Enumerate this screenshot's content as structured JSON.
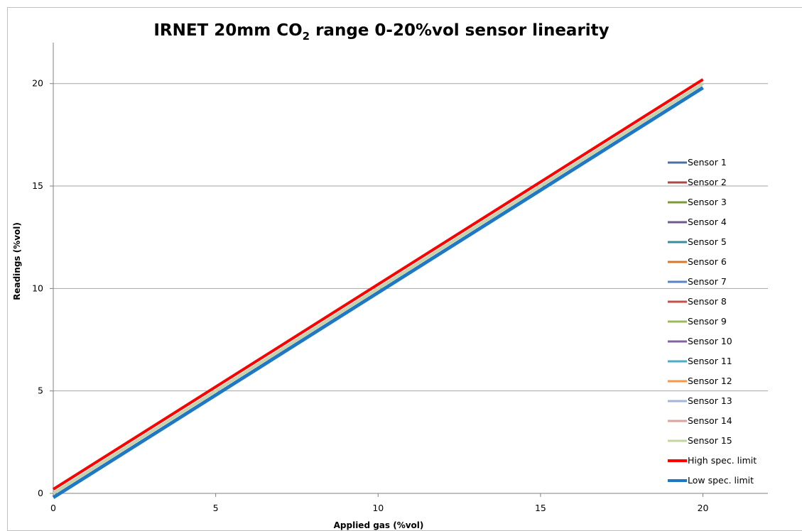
{
  "chart_data": {
    "type": "line",
    "title_main": "IRNET 20mm CO",
    "title_sub": "2",
    "title_rest": " range  0-20%vol sensor linearity",
    "xlabel": "Applied gas (%vol)",
    "ylabel": "Readings (%vol)",
    "xlim": [
      0,
      22
    ],
    "ylim": [
      0,
      22
    ],
    "x_ticks": [
      0,
      5,
      10,
      15,
      20
    ],
    "y_ticks": [
      0,
      5,
      10,
      15,
      20
    ],
    "grid": "horizontal",
    "legend_position": "right",
    "x": [
      0,
      20
    ],
    "series": [
      {
        "name": "Sensor 1",
        "color": "#4a6fa5",
        "values": [
          0.0,
          20.0
        ]
      },
      {
        "name": "Sensor 2",
        "color": "#a84a4a",
        "values": [
          0.0,
          20.0
        ]
      },
      {
        "name": "Sensor 3",
        "color": "#7a9a3a",
        "values": [
          0.0,
          20.0
        ]
      },
      {
        "name": "Sensor 4",
        "color": "#6f5a8f",
        "values": [
          0.0,
          20.0
        ]
      },
      {
        "name": "Sensor 5",
        "color": "#3a8aa0",
        "values": [
          0.0,
          20.0
        ]
      },
      {
        "name": "Sensor 6",
        "color": "#d9772a",
        "values": [
          0.0,
          20.0
        ]
      },
      {
        "name": "Sensor 7",
        "color": "#5a82c4",
        "values": [
          0.0,
          20.0
        ]
      },
      {
        "name": "Sensor 8",
        "color": "#c4504d",
        "values": [
          0.0,
          20.0
        ]
      },
      {
        "name": "Sensor 9",
        "color": "#9bbb59",
        "values": [
          0.0,
          20.0
        ]
      },
      {
        "name": "Sensor 10",
        "color": "#8064a2",
        "values": [
          0.0,
          20.0
        ]
      },
      {
        "name": "Sensor 11",
        "color": "#4bacc6",
        "values": [
          0.0,
          20.0
        ]
      },
      {
        "name": "Sensor 12",
        "color": "#f79646",
        "values": [
          0.0,
          20.0
        ]
      },
      {
        "name": "Sensor 13",
        "color": "#a3b6d6",
        "values": [
          0.0,
          20.0
        ]
      },
      {
        "name": "Sensor 14",
        "color": "#d9a3a3",
        "values": [
          0.0,
          20.0
        ]
      },
      {
        "name": "Sensor 15",
        "color": "#c3d6a0",
        "values": [
          0.0,
          20.0
        ]
      },
      {
        "name": "High spec. limit",
        "color": "#ff0000",
        "values": [
          0.2,
          20.2
        ],
        "emphasis": true
      },
      {
        "name": "Low spec. limit",
        "color": "#1f78c1",
        "values": [
          -0.2,
          19.8
        ],
        "emphasis": true
      }
    ]
  }
}
